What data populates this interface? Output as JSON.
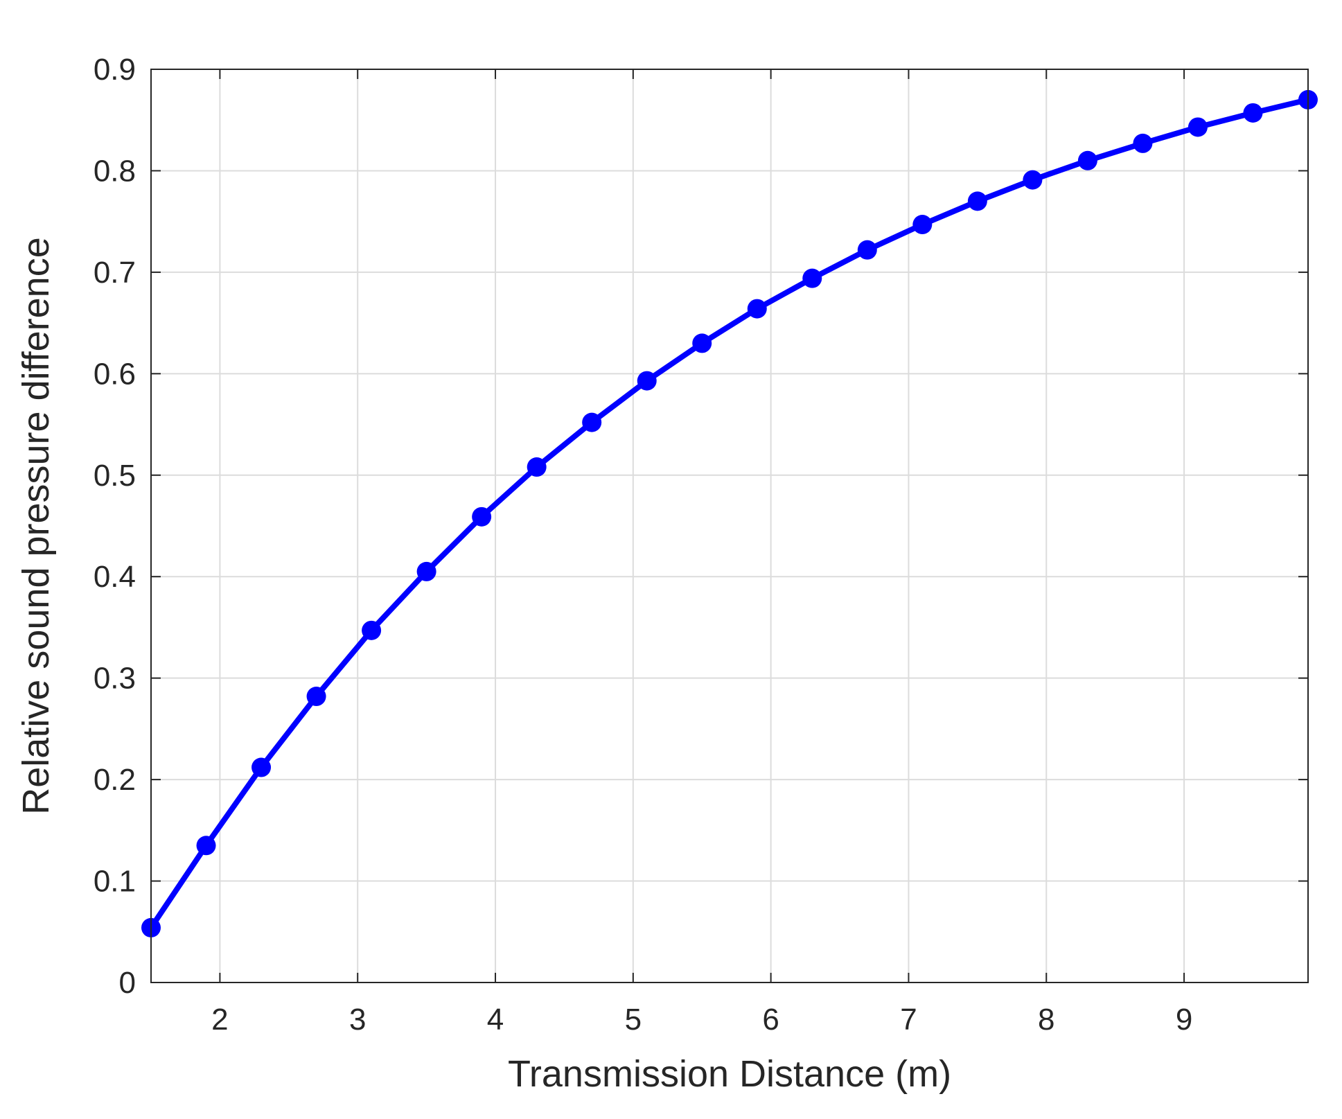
{
  "chart_data": {
    "type": "line",
    "title": "",
    "xlabel": "Transmission Distance (m)",
    "ylabel": "Relative sound pressure difference",
    "xlim": [
      1.5,
      9.9
    ],
    "ylim": [
      0,
      0.9
    ],
    "xticks": [
      2,
      3,
      4,
      5,
      6,
      7,
      8,
      9
    ],
    "yticks": [
      0,
      0.1,
      0.2,
      0.3,
      0.4,
      0.5,
      0.6,
      0.7,
      0.8,
      0.9
    ],
    "grid": true,
    "legend": "none",
    "series": [
      {
        "color": "#0000ff",
        "marker": "circle",
        "x": [
          1.5,
          1.9,
          2.3,
          2.7,
          3.1,
          3.5,
          3.9,
          4.3,
          4.7,
          5.1,
          5.5,
          5.9,
          6.3,
          6.7,
          7.1,
          7.5,
          7.9,
          8.3,
          8.7,
          9.1,
          9.5,
          9.9
        ],
        "y": [
          0.054,
          0.135,
          0.212,
          0.282,
          0.347,
          0.405,
          0.459,
          0.508,
          0.552,
          0.593,
          0.63,
          0.664,
          0.694,
          0.722,
          0.747,
          0.77,
          0.791,
          0.81,
          0.827,
          0.843,
          0.857,
          0.87
        ]
      }
    ]
  }
}
